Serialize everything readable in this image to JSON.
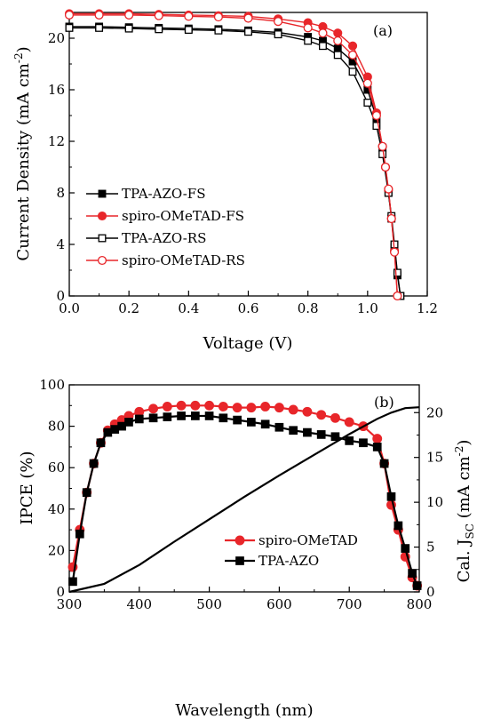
{
  "chart_data": [
    {
      "id": "a",
      "type": "line",
      "panel_label": "(a)",
      "xlabel": "Voltage (V)",
      "ylabel": "Current Density (mA cm",
      "ylabel_sup": "-2",
      "ylabel_tail": ")",
      "xlim": [
        0.0,
        1.2
      ],
      "ylim": [
        0,
        22
      ],
      "xticks": [
        0.0,
        0.2,
        0.4,
        0.6,
        0.8,
        1.0,
        1.2
      ],
      "xtick_labels": [
        "0.0",
        "0.2",
        "0.4",
        "0.6",
        "0.8",
        "1.0",
        "1.2"
      ],
      "yticks": [
        0,
        4,
        8,
        12,
        16,
        20
      ],
      "ytick_labels": [
        "0",
        "4",
        "8",
        "12",
        "16",
        "20"
      ],
      "grid": false,
      "legend_position": "bottom-left",
      "series": [
        {
          "name": "TPA-AZO-FS",
          "color": "#000000",
          "marker": "square",
          "fill": "filled",
          "x": [
            0.0,
            0.1,
            0.2,
            0.3,
            0.4,
            0.5,
            0.6,
            0.7,
            0.8,
            0.85,
            0.9,
            0.95,
            1.0,
            1.03,
            1.05,
            1.07,
            1.08,
            1.09,
            1.1,
            1.11
          ],
          "y": [
            20.9,
            20.9,
            20.85,
            20.8,
            20.75,
            20.7,
            20.6,
            20.45,
            20.1,
            19.8,
            19.2,
            18.2,
            16.0,
            13.8,
            11.5,
            8.0,
            6.0,
            3.8,
            1.6,
            0.0
          ]
        },
        {
          "name": "spiro-OMeTAD-FS",
          "color": "#e8262a",
          "marker": "circle",
          "fill": "filled",
          "x": [
            0.0,
            0.1,
            0.2,
            0.3,
            0.4,
            0.5,
            0.6,
            0.7,
            0.8,
            0.85,
            0.9,
            0.95,
            1.0,
            1.03,
            1.05,
            1.06,
            1.07,
            1.08,
            1.09,
            1.1
          ],
          "y": [
            21.9,
            21.9,
            21.9,
            21.85,
            21.8,
            21.75,
            21.7,
            21.5,
            21.2,
            20.9,
            20.4,
            19.4,
            17.0,
            14.2,
            11.6,
            10.0,
            8.2,
            6.0,
            3.5,
            0.0
          ]
        },
        {
          "name": "TPA-AZO-RS",
          "color": "#000000",
          "marker": "square",
          "fill": "open",
          "x": [
            0.0,
            0.1,
            0.2,
            0.3,
            0.4,
            0.5,
            0.6,
            0.7,
            0.8,
            0.85,
            0.9,
            0.95,
            1.0,
            1.03,
            1.05,
            1.07,
            1.08,
            1.09,
            1.1,
            1.11
          ],
          "y": [
            20.8,
            20.8,
            20.75,
            20.7,
            20.65,
            20.6,
            20.5,
            20.3,
            19.8,
            19.4,
            18.7,
            17.4,
            15.0,
            13.2,
            11.0,
            8.0,
            6.2,
            4.0,
            1.8,
            0.0
          ]
        },
        {
          "name": "spiro-OMeTAD-RS",
          "color": "#e8262a",
          "marker": "circle",
          "fill": "open",
          "x": [
            0.0,
            0.1,
            0.2,
            0.3,
            0.4,
            0.5,
            0.6,
            0.7,
            0.8,
            0.85,
            0.9,
            0.95,
            1.0,
            1.03,
            1.05,
            1.06,
            1.07,
            1.08,
            1.09,
            1.1
          ],
          "y": [
            21.8,
            21.8,
            21.8,
            21.75,
            21.7,
            21.65,
            21.55,
            21.3,
            20.8,
            20.4,
            19.8,
            18.7,
            16.5,
            14.0,
            11.6,
            10.0,
            8.3,
            6.0,
            3.4,
            0.0
          ]
        }
      ]
    },
    {
      "id": "b",
      "type": "line",
      "panel_label": "(b)",
      "xlabel": "Wavelength (nm)",
      "ylabel": "IPCE (%)",
      "y2label": "Cal. J",
      "y2label_sub": "SC",
      "y2label_mid": " (mA cm",
      "y2label_sup": "-2",
      "y2label_tail": ")",
      "xlim": [
        300,
        800
      ],
      "ylim": [
        0,
        100
      ],
      "y2lim": [
        0,
        23.1
      ],
      "xticks": [
        300,
        400,
        500,
        600,
        700,
        800
      ],
      "xtick_labels": [
        "300",
        "400",
        "500",
        "600",
        "700",
        "800"
      ],
      "yticks": [
        0,
        20,
        40,
        60,
        80,
        100
      ],
      "ytick_labels": [
        "0",
        "20",
        "40",
        "60",
        "80",
        "100"
      ],
      "y2ticks": [
        0,
        5,
        10,
        15,
        20
      ],
      "y2tick_labels": [
        "0",
        "5",
        "10",
        "15",
        "20"
      ],
      "grid": false,
      "legend_position": "bottom-right",
      "series": [
        {
          "name": "spiro-OMeTAD",
          "color": "#e8262a",
          "marker": "circle",
          "fill": "filled",
          "axis": "left",
          "x": [
            305,
            315,
            325,
            335,
            345,
            355,
            365,
            375,
            385,
            400,
            420,
            440,
            460,
            480,
            500,
            520,
            540,
            560,
            580,
            600,
            620,
            640,
            660,
            680,
            700,
            720,
            740,
            750,
            760,
            770,
            780,
            790,
            797
          ],
          "y": [
            12,
            30,
            48,
            62,
            72,
            78,
            81,
            83,
            85,
            87,
            88.5,
            89.5,
            90,
            90,
            90,
            89.5,
            89,
            89,
            89.5,
            89,
            88,
            87,
            85.5,
            84,
            82,
            80,
            74,
            62,
            42,
            30,
            17,
            7,
            3
          ]
        },
        {
          "name": "TPA-AZO",
          "color": "#000000",
          "marker": "square",
          "fill": "filled",
          "axis": "left",
          "x": [
            305,
            315,
            325,
            335,
            345,
            355,
            365,
            375,
            385,
            400,
            420,
            440,
            460,
            480,
            500,
            520,
            540,
            560,
            580,
            600,
            620,
            640,
            660,
            680,
            700,
            720,
            740,
            750,
            760,
            770,
            780,
            790,
            797
          ],
          "y": [
            5,
            28,
            48,
            62,
            72,
            77,
            78.5,
            80,
            82,
            83.5,
            84,
            84.5,
            85,
            85,
            85,
            84,
            83,
            82,
            81,
            79.5,
            78,
            77,
            76,
            75,
            73,
            72,
            70,
            62,
            46,
            32,
            21,
            9,
            3
          ]
        },
        {
          "name": "",
          "color": "#000000",
          "marker": "none",
          "axis": "right",
          "x": [
            300,
            350,
            400,
            450,
            500,
            550,
            600,
            650,
            700,
            740,
            760,
            780,
            800
          ],
          "y": [
            0,
            0.9,
            3.0,
            5.6,
            8.1,
            10.6,
            13.0,
            15.3,
            17.6,
            19.3,
            20.0,
            20.5,
            20.6
          ]
        }
      ]
    }
  ]
}
